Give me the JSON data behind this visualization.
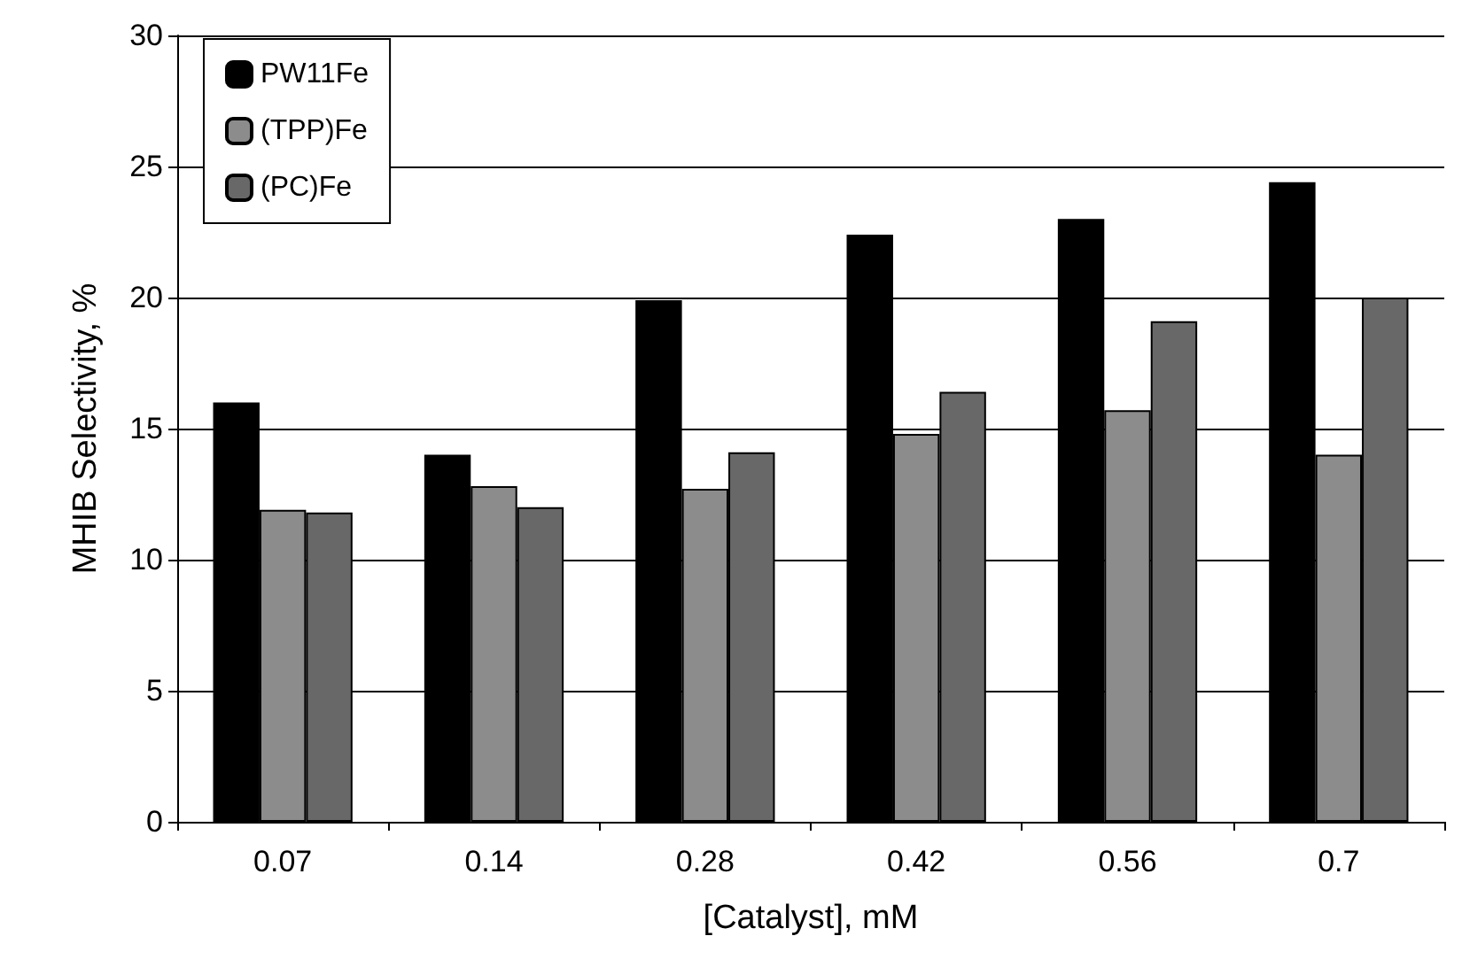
{
  "chart_data": {
    "type": "bar",
    "xlabel": "[Catalyst], mM",
    "ylabel": "MHIB Selectivity, %",
    "categories": [
      "0.07",
      "0.14",
      "0.28",
      "0.42",
      "0.56",
      "0.7"
    ],
    "series": [
      {
        "name": "PW11Fe",
        "color": "#000000",
        "values": [
          16.0,
          14.0,
          19.9,
          22.4,
          23.0,
          24.4
        ]
      },
      {
        "name": "(TPP)Fe",
        "color": "#8c8c8c",
        "values": [
          11.9,
          12.8,
          12.7,
          14.8,
          15.7,
          14.0
        ]
      },
      {
        "name": "(PC)Fe",
        "color": "#686868",
        "values": [
          11.8,
          12.0,
          14.1,
          16.4,
          19.1,
          20.0
        ]
      }
    ],
    "ylim": [
      0,
      30
    ],
    "yticks": [
      0,
      5,
      10,
      15,
      20,
      25,
      30
    ],
    "grid": "y",
    "legend": "top left"
  }
}
